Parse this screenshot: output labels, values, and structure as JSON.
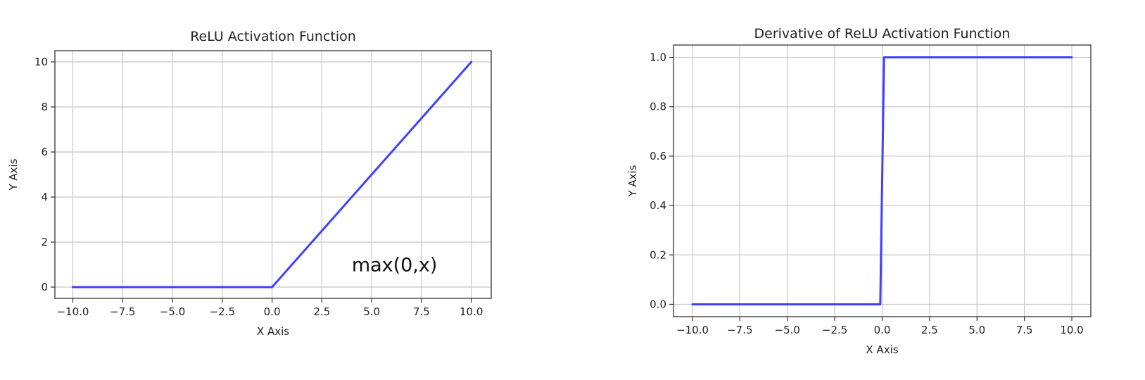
{
  "chart_data": [
    {
      "type": "line",
      "title": "ReLU Activation Function",
      "xlabel": "X Axis",
      "ylabel": "Y Axis",
      "xlim": [
        -10.9,
        11.0
      ],
      "ylim": [
        -0.5,
        10.5
      ],
      "xticks": [
        -10.0,
        -7.5,
        -5.0,
        -2.5,
        0.0,
        2.5,
        5.0,
        7.5,
        10.0
      ],
      "xtick_labels": [
        "−10.0",
        "−7.5",
        "−5.0",
        "−2.5",
        "0.0",
        "2.5",
        "5.0",
        "7.5",
        "10.0"
      ],
      "yticks": [
        0,
        2,
        4,
        6,
        8,
        10
      ],
      "ytick_labels": [
        "0",
        "2",
        "4",
        "6",
        "8",
        "10"
      ],
      "grid": true,
      "series": [
        {
          "color": "#4040ff",
          "x": [
            -10,
            0,
            10
          ],
          "y": [
            0,
            0,
            10
          ]
        }
      ],
      "annotations": [
        {
          "text": "max(0,x)",
          "x": 4.0,
          "y": 0.7
        }
      ]
    },
    {
      "type": "line",
      "title": "Derivative of ReLU Activation Function",
      "xlabel": "X Axis",
      "ylabel": "Y Axis",
      "xlim": [
        -11.0,
        11.0
      ],
      "ylim": [
        -0.05,
        1.05
      ],
      "xticks": [
        -10.0,
        -7.5,
        -5.0,
        -2.5,
        0.0,
        2.5,
        5.0,
        7.5,
        10.0
      ],
      "xtick_labels": [
        "−10.0",
        "−7.5",
        "−5.0",
        "−2.5",
        "0.0",
        "2.5",
        "5.0",
        "7.5",
        "10.0"
      ],
      "yticks": [
        0.0,
        0.2,
        0.4,
        0.6,
        0.8,
        1.0
      ],
      "ytick_labels": [
        "0.0",
        "0.2",
        "0.4",
        "0.6",
        "0.8",
        "1.0"
      ],
      "grid": true,
      "series": [
        {
          "color": "#4040ff",
          "x": [
            -10,
            -0.1,
            0.1,
            10
          ],
          "y": [
            0,
            0,
            1,
            1
          ]
        }
      ],
      "annotations": []
    }
  ]
}
